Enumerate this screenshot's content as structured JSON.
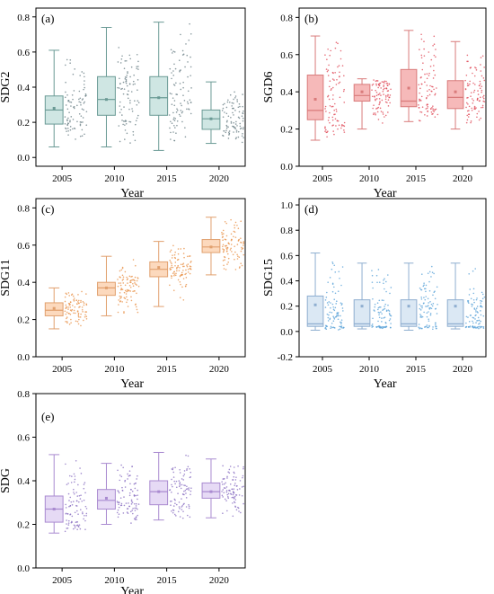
{
  "figure": {
    "panels": [
      {
        "id": "a",
        "tag": "(a)",
        "xlabel": "Year",
        "ylabel": "SDG2",
        "ylim": [
          -0.05,
          0.85
        ],
        "yticks": [
          "0.0",
          "0.2",
          "0.4",
          "0.6",
          "0.8"
        ],
        "ytick_values": [
          0,
          0.2,
          0.4,
          0.6,
          0.8
        ],
        "color": "#cfe6e3",
        "edge": "#6a9a95",
        "dot": "#6a7f86"
      },
      {
        "id": "b",
        "tag": "(b)",
        "xlabel": "Year",
        "ylabel": "SGD6",
        "ylim": [
          0.0,
          0.85
        ],
        "yticks": [
          "0.0",
          "0.2",
          "0.4",
          "0.6",
          "0.8"
        ],
        "ytick_values": [
          0,
          0.2,
          0.4,
          0.6,
          0.8
        ],
        "color": "#f6b9b9",
        "edge": "#d97b7b",
        "dot": "#e04a57"
      },
      {
        "id": "c",
        "tag": "(c)",
        "xlabel": "Year",
        "ylabel": "SDG11",
        "ylim": [
          0.0,
          0.85
        ],
        "yticks": [
          "0.0",
          "0.2",
          "0.4",
          "0.6",
          "0.8"
        ],
        "ytick_values": [
          0,
          0.2,
          0.4,
          0.6,
          0.8
        ],
        "color": "#fcd9bd",
        "edge": "#e1a06e",
        "dot": "#e8924a"
      },
      {
        "id": "d",
        "tag": "(d)",
        "xlabel": "Year",
        "ylabel": "SDG15",
        "ylim": [
          -0.2,
          1.05
        ],
        "yticks": [
          "-0.2",
          "0.0",
          "0.2",
          "0.4",
          "0.6",
          "0.8",
          "1.0"
        ],
        "ytick_values": [
          -0.2,
          0,
          0.2,
          0.4,
          0.6,
          0.8,
          1.0
        ],
        "color": "#dbe8f4",
        "edge": "#8eaed0",
        "dot": "#5aa3d8"
      },
      {
        "id": "e",
        "tag": "(e)",
        "xlabel": "Year",
        "ylabel": "SDG",
        "ylim": [
          0.0,
          0.8
        ],
        "yticks": [
          "0.0",
          "0.2",
          "0.4",
          "0.6",
          "0.8"
        ],
        "ytick_values": [
          0,
          0.2,
          0.4,
          0.6,
          0.8
        ],
        "color": "#e6daf5",
        "edge": "#a98ad0",
        "dot": "#8a6fc2"
      }
    ]
  },
  "chart_data": [
    {
      "type": "box",
      "panel": "a",
      "categories": [
        "2005",
        "2010",
        "2015",
        "2020"
      ],
      "xlabel": "Year",
      "ylabel": "SDG2",
      "boxes": [
        {
          "year": "2005",
          "whisker_low": 0.06,
          "q1": 0.19,
          "median": 0.27,
          "mean": 0.28,
          "q3": 0.35,
          "whisker_high": 0.61
        },
        {
          "year": "2010",
          "whisker_low": 0.06,
          "q1": 0.24,
          "median": 0.33,
          "mean": 0.33,
          "q3": 0.46,
          "whisker_high": 0.74
        },
        {
          "year": "2015",
          "whisker_low": 0.04,
          "q1": 0.24,
          "median": 0.34,
          "mean": 0.34,
          "q3": 0.46,
          "whisker_high": 0.77
        },
        {
          "year": "2020",
          "whisker_low": 0.08,
          "q1": 0.16,
          "median": 0.22,
          "mean": 0.22,
          "q3": 0.27,
          "whisker_high": 0.43
        }
      ]
    },
    {
      "type": "box",
      "panel": "b",
      "categories": [
        "2005",
        "2010",
        "2015",
        "2020"
      ],
      "xlabel": "Year",
      "ylabel": "SGD6",
      "boxes": [
        {
          "year": "2005",
          "whisker_low": 0.14,
          "q1": 0.25,
          "median": 0.3,
          "mean": 0.36,
          "q3": 0.49,
          "whisker_high": 0.7
        },
        {
          "year": "2010",
          "whisker_low": 0.2,
          "q1": 0.35,
          "median": 0.38,
          "mean": 0.4,
          "q3": 0.44,
          "whisker_high": 0.47
        },
        {
          "year": "2015",
          "whisker_low": 0.24,
          "q1": 0.32,
          "median": 0.35,
          "mean": 0.42,
          "q3": 0.52,
          "whisker_high": 0.73
        },
        {
          "year": "2020",
          "whisker_low": 0.2,
          "q1": 0.31,
          "median": 0.37,
          "mean": 0.4,
          "q3": 0.46,
          "whisker_high": 0.67
        }
      ]
    },
    {
      "type": "box",
      "panel": "c",
      "categories": [
        "2005",
        "2010",
        "2015",
        "2020"
      ],
      "xlabel": "Year",
      "ylabel": "SDG11",
      "boxes": [
        {
          "year": "2005",
          "whisker_low": 0.15,
          "q1": 0.22,
          "median": 0.25,
          "mean": 0.26,
          "q3": 0.29,
          "whisker_high": 0.37
        },
        {
          "year": "2010",
          "whisker_low": 0.22,
          "q1": 0.33,
          "median": 0.37,
          "mean": 0.37,
          "q3": 0.4,
          "whisker_high": 0.54
        },
        {
          "year": "2015",
          "whisker_low": 0.27,
          "q1": 0.43,
          "median": 0.47,
          "mean": 0.48,
          "q3": 0.51,
          "whisker_high": 0.62
        },
        {
          "year": "2020",
          "whisker_low": 0.44,
          "q1": 0.56,
          "median": 0.59,
          "mean": 0.59,
          "q3": 0.63,
          "whisker_high": 0.75
        }
      ]
    },
    {
      "type": "box",
      "panel": "d",
      "categories": [
        "2005",
        "2010",
        "2015",
        "2020"
      ],
      "xlabel": "Year",
      "ylabel": "SDG15",
      "boxes": [
        {
          "year": "2005",
          "whisker_low": 0.01,
          "q1": 0.04,
          "median": 0.06,
          "mean": 0.21,
          "q3": 0.28,
          "whisker_high": 0.62
        },
        {
          "year": "2010",
          "whisker_low": 0.02,
          "q1": 0.04,
          "median": 0.06,
          "mean": 0.2,
          "q3": 0.25,
          "whisker_high": 0.54
        },
        {
          "year": "2015",
          "whisker_low": 0.01,
          "q1": 0.04,
          "median": 0.06,
          "mean": 0.2,
          "q3": 0.25,
          "whisker_high": 0.54
        },
        {
          "year": "2020",
          "whisker_low": 0.02,
          "q1": 0.04,
          "median": 0.06,
          "mean": 0.2,
          "q3": 0.25,
          "whisker_high": 0.54
        }
      ]
    },
    {
      "type": "box",
      "panel": "e",
      "categories": [
        "2005",
        "2010",
        "2015",
        "2020"
      ],
      "xlabel": "Year",
      "ylabel": "SDG",
      "boxes": [
        {
          "year": "2005",
          "whisker_low": 0.16,
          "q1": 0.21,
          "median": 0.27,
          "mean": 0.27,
          "q3": 0.33,
          "whisker_high": 0.52
        },
        {
          "year": "2010",
          "whisker_low": 0.2,
          "q1": 0.27,
          "median": 0.31,
          "mean": 0.32,
          "q3": 0.36,
          "whisker_high": 0.48
        },
        {
          "year": "2015",
          "whisker_low": 0.22,
          "q1": 0.29,
          "median": 0.35,
          "mean": 0.35,
          "q3": 0.4,
          "whisker_high": 0.53
        },
        {
          "year": "2020",
          "whisker_low": 0.23,
          "q1": 0.32,
          "median": 0.35,
          "mean": 0.35,
          "q3": 0.39,
          "whisker_high": 0.5
        }
      ]
    }
  ]
}
